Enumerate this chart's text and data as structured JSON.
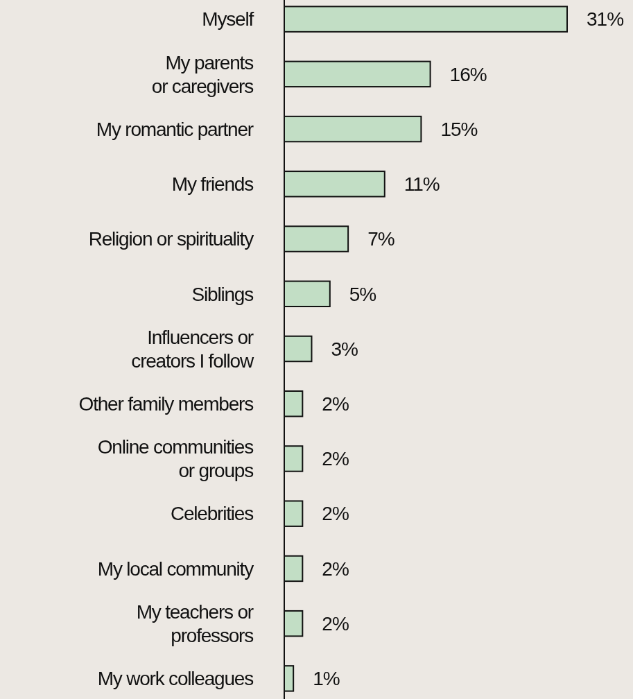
{
  "chart_data": {
    "type": "bar",
    "orientation": "horizontal",
    "categories": [
      "Myself",
      "My parents\nor caregivers",
      "My romantic partner",
      "My friends",
      "Religion or spirituality",
      "Siblings",
      "Influencers or\ncreators I follow",
      "Other family members",
      "Online communities\nor groups",
      "Celebrities",
      "My local community",
      "My teachers or\nprofessors",
      "My work colleagues"
    ],
    "values": [
      31,
      16,
      15,
      11,
      7,
      5,
      3,
      2,
      2,
      2,
      2,
      2,
      1
    ],
    "value_labels": [
      "31%",
      "16%",
      "15%",
      "11%",
      "7%",
      "5%",
      "3%",
      "2%",
      "2%",
      "2%",
      "2%",
      "2%",
      "1%"
    ],
    "color": "#c2dec5"
  }
}
